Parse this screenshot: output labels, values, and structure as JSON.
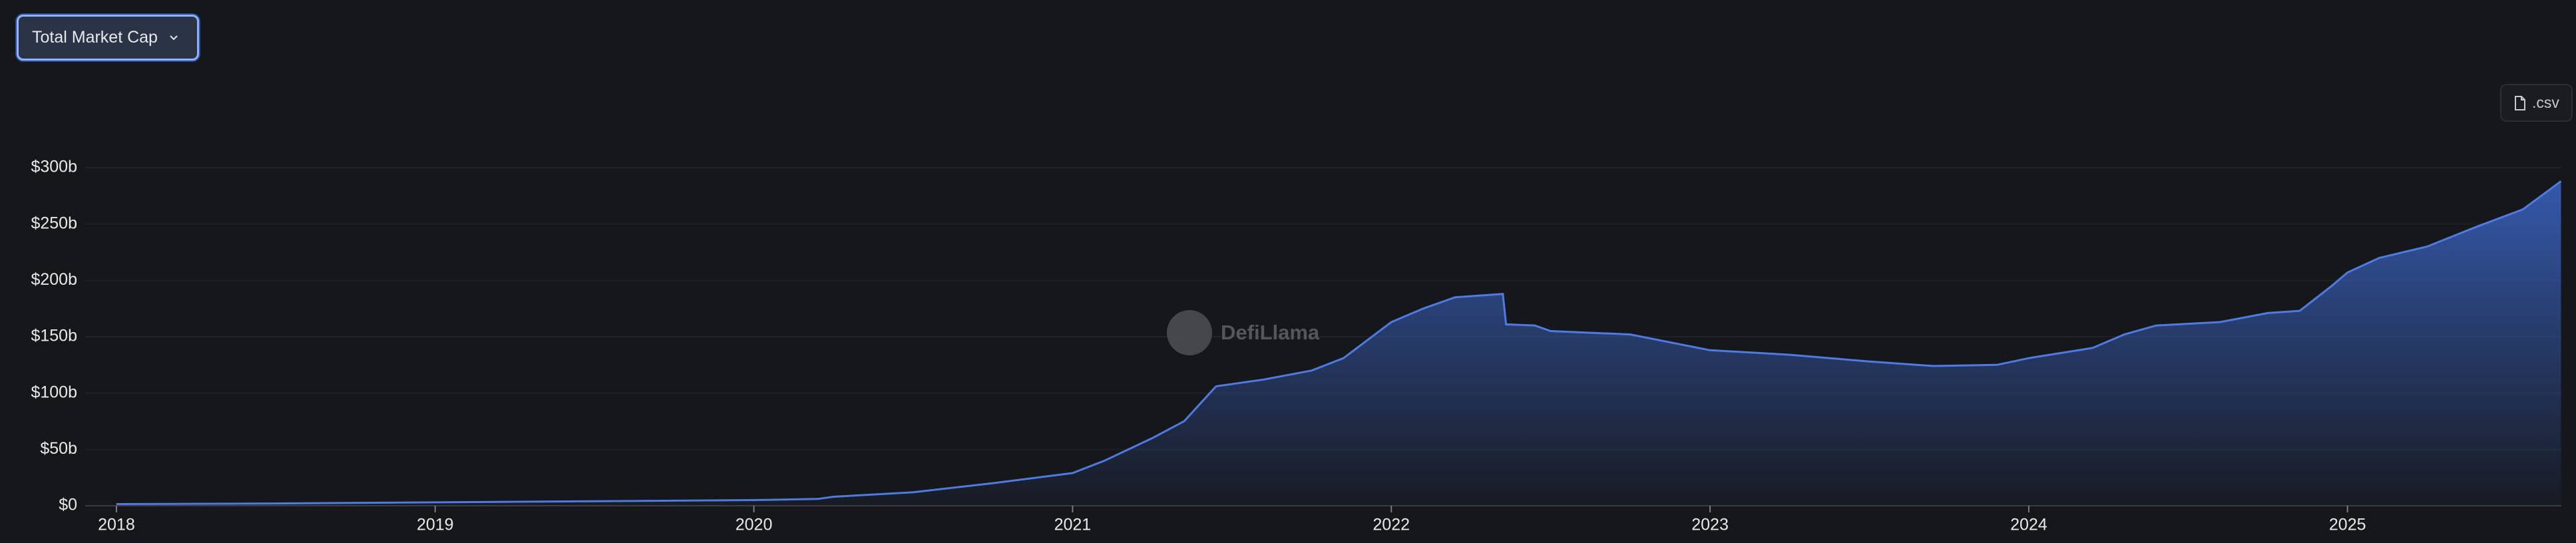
{
  "controls": {
    "metric": "Total Market Cap",
    "download": ".csv"
  },
  "watermark": "DefiLlama",
  "chart_data": {
    "type": "area",
    "color": "#4f7be0",
    "grid": true,
    "x": [
      2018.0,
      2018.5,
      2019.0,
      2019.5,
      2020.0,
      2020.2,
      2020.25,
      2020.5,
      2020.75,
      2021.0,
      2021.1,
      2021.25,
      2021.35,
      2021.45,
      2021.6,
      2021.75,
      2021.85,
      2022.0,
      2022.1,
      2022.2,
      2022.35,
      2022.36,
      2022.45,
      2022.5,
      2022.75,
      2023.0,
      2023.25,
      2023.5,
      2023.7,
      2023.9,
      2024.0,
      2024.2,
      2024.3,
      2024.4,
      2024.6,
      2024.75,
      2024.85,
      2024.95,
      2025.0,
      2025.1,
      2025.25,
      2025.4,
      2025.55,
      2025.67
    ],
    "values": [
      1.5,
      2,
      3,
      4,
      5,
      6,
      8,
      12,
      20,
      29,
      40,
      60,
      75,
      106,
      112,
      120,
      131,
      163,
      175,
      185,
      188,
      161,
      160,
      155,
      152,
      138,
      134,
      128,
      124,
      125,
      131,
      140,
      152,
      160,
      163,
      171,
      173,
      195,
      207,
      220,
      230,
      247,
      263,
      288
    ],
    "xlim": [
      2017.902,
      2025.671
    ],
    "xticks": [
      2018,
      2019,
      2020,
      2021,
      2022,
      2023,
      2024,
      2025
    ],
    "ylim": [
      0,
      300
    ],
    "yticks": [
      {
        "value": 0,
        "label": "$0"
      },
      {
        "value": 50,
        "label": "$50b"
      },
      {
        "value": 100,
        "label": "$100b"
      },
      {
        "value": 150,
        "label": "$150b"
      },
      {
        "value": 200,
        "label": "$200b"
      },
      {
        "value": 250,
        "label": "$250b"
      },
      {
        "value": 300,
        "label": "$300b"
      }
    ]
  }
}
